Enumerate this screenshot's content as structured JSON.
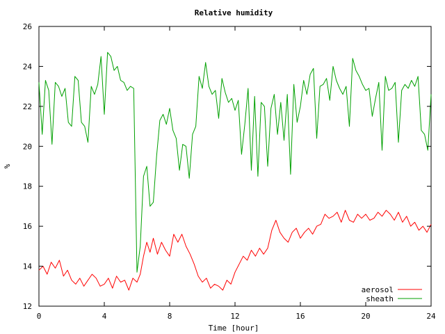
{
  "chart_data": {
    "type": "line",
    "title": "Relative humidity",
    "xlabel": "Time [hour]",
    "ylabel": "%",
    "xlim": [
      0,
      24
    ],
    "ylim": [
      12,
      26
    ],
    "xticks": [
      "0",
      "4",
      "8",
      "12",
      "16",
      "20",
      "24"
    ],
    "yticks": [
      "12",
      "14",
      "16",
      "18",
      "20",
      "22",
      "24",
      "26"
    ],
    "grid": false,
    "legend_position": "bottom-right",
    "series": [
      {
        "name": "aerosol",
        "color": "#ff0000",
        "x": [
          0.0,
          0.25,
          0.5,
          0.75,
          1.0,
          1.25,
          1.5,
          1.75,
          2.0,
          2.25,
          2.5,
          2.75,
          3.0,
          3.25,
          3.5,
          3.75,
          4.0,
          4.25,
          4.5,
          4.75,
          5.0,
          5.25,
          5.5,
          5.75,
          6.0,
          6.2,
          6.4,
          6.6,
          6.8,
          7.0,
          7.25,
          7.5,
          7.75,
          8.0,
          8.25,
          8.5,
          8.75,
          9.0,
          9.25,
          9.5,
          9.75,
          10.0,
          10.25,
          10.5,
          10.75,
          11.0,
          11.25,
          11.5,
          11.75,
          12.0,
          12.25,
          12.5,
          12.75,
          13.0,
          13.25,
          13.5,
          13.75,
          14.0,
          14.25,
          14.5,
          14.75,
          15.0,
          15.25,
          15.5,
          15.75,
          16.0,
          16.25,
          16.5,
          16.75,
          17.0,
          17.25,
          17.5,
          17.75,
          18.0,
          18.25,
          18.5,
          18.75,
          19.0,
          19.25,
          19.5,
          19.75,
          20.0,
          20.25,
          20.5,
          20.75,
          21.0,
          21.25,
          21.5,
          21.75,
          22.0,
          22.25,
          22.5,
          22.75,
          23.0,
          23.25,
          23.5,
          23.75,
          24.0
        ],
        "y": [
          13.8,
          14.0,
          13.6,
          14.2,
          13.9,
          14.3,
          13.5,
          13.8,
          13.3,
          13.1,
          13.4,
          13.0,
          13.3,
          13.6,
          13.4,
          13.0,
          13.1,
          13.4,
          12.9,
          13.5,
          13.2,
          13.3,
          12.8,
          13.4,
          13.2,
          13.6,
          14.5,
          15.2,
          14.7,
          15.4,
          14.6,
          15.2,
          14.8,
          14.5,
          15.6,
          15.2,
          15.6,
          15.0,
          14.6,
          14.1,
          13.5,
          13.2,
          13.4,
          12.9,
          13.1,
          13.0,
          12.8,
          13.3,
          13.1,
          13.7,
          14.1,
          14.5,
          14.3,
          14.8,
          14.5,
          14.9,
          14.6,
          14.9,
          15.8,
          16.3,
          15.7,
          15.4,
          15.2,
          15.7,
          15.9,
          15.4,
          15.7,
          15.9,
          15.6,
          16.0,
          16.1,
          16.6,
          16.4,
          16.5,
          16.7,
          16.2,
          16.8,
          16.3,
          16.2,
          16.6,
          16.4,
          16.6,
          16.3,
          16.4,
          16.7,
          16.5,
          16.8,
          16.6,
          16.3,
          16.7,
          16.2,
          16.5,
          16.0,
          16.2,
          15.8,
          16.0,
          15.7,
          16.1
        ]
      },
      {
        "name": "sheath",
        "color": "#00a000",
        "x": [
          0.0,
          0.2,
          0.4,
          0.6,
          0.8,
          1.0,
          1.2,
          1.4,
          1.6,
          1.8,
          2.0,
          2.2,
          2.4,
          2.6,
          2.8,
          3.0,
          3.2,
          3.4,
          3.6,
          3.8,
          4.0,
          4.2,
          4.4,
          4.6,
          4.8,
          5.0,
          5.2,
          5.4,
          5.6,
          5.8,
          6.0,
          6.2,
          6.4,
          6.6,
          6.8,
          7.0,
          7.2,
          7.4,
          7.6,
          7.8,
          8.0,
          8.2,
          8.4,
          8.6,
          8.8,
          9.0,
          9.2,
          9.4,
          9.6,
          9.8,
          10.0,
          10.2,
          10.4,
          10.6,
          10.8,
          11.0,
          11.2,
          11.4,
          11.6,
          11.8,
          12.0,
          12.2,
          12.4,
          12.6,
          12.8,
          13.0,
          13.2,
          13.4,
          13.6,
          13.8,
          14.0,
          14.2,
          14.4,
          14.6,
          14.8,
          15.0,
          15.2,
          15.4,
          15.6,
          15.8,
          16.0,
          16.2,
          16.4,
          16.6,
          16.8,
          17.0,
          17.2,
          17.4,
          17.6,
          17.8,
          18.0,
          18.2,
          18.4,
          18.6,
          18.8,
          19.0,
          19.2,
          19.4,
          19.6,
          19.8,
          20.0,
          20.2,
          20.4,
          20.6,
          20.8,
          21.0,
          21.2,
          21.4,
          21.6,
          21.8,
          22.0,
          22.2,
          22.4,
          22.6,
          22.8,
          23.0,
          23.2,
          23.4,
          23.6,
          23.8,
          24.0
        ],
        "y": [
          23.2,
          20.6,
          23.3,
          22.8,
          20.1,
          23.2,
          23.0,
          22.5,
          22.9,
          21.2,
          21.0,
          23.5,
          23.3,
          21.2,
          21.0,
          20.2,
          23.0,
          22.6,
          23.1,
          24.5,
          21.6,
          24.7,
          24.5,
          23.8,
          24.0,
          23.3,
          23.2,
          22.8,
          23.0,
          22.9,
          13.7,
          15.0,
          18.5,
          19.0,
          17.0,
          17.2,
          19.5,
          21.3,
          21.6,
          21.1,
          21.9,
          20.8,
          20.4,
          18.8,
          20.1,
          20.0,
          18.4,
          20.6,
          21.0,
          23.5,
          22.9,
          24.2,
          23.0,
          22.6,
          22.8,
          21.4,
          23.4,
          22.7,
          22.2,
          22.4,
          21.8,
          22.3,
          19.6,
          21.1,
          22.9,
          18.8,
          22.5,
          18.5,
          22.2,
          22.0,
          19.0,
          21.9,
          22.6,
          20.6,
          22.2,
          20.3,
          22.6,
          18.6,
          23.1,
          21.2,
          22.0,
          23.3,
          22.6,
          23.6,
          23.9,
          20.4,
          23.0,
          23.1,
          23.4,
          22.3,
          24.0,
          23.3,
          22.9,
          22.6,
          23.0,
          21.0,
          24.4,
          23.8,
          23.5,
          23.1,
          22.8,
          22.9,
          21.5,
          22.4,
          23.2,
          19.8,
          23.5,
          22.8,
          22.9,
          23.2,
          20.2,
          22.8,
          23.1,
          22.9,
          23.3,
          23.0,
          23.5,
          20.8,
          20.6,
          19.8,
          22.6
        ]
      }
    ]
  }
}
